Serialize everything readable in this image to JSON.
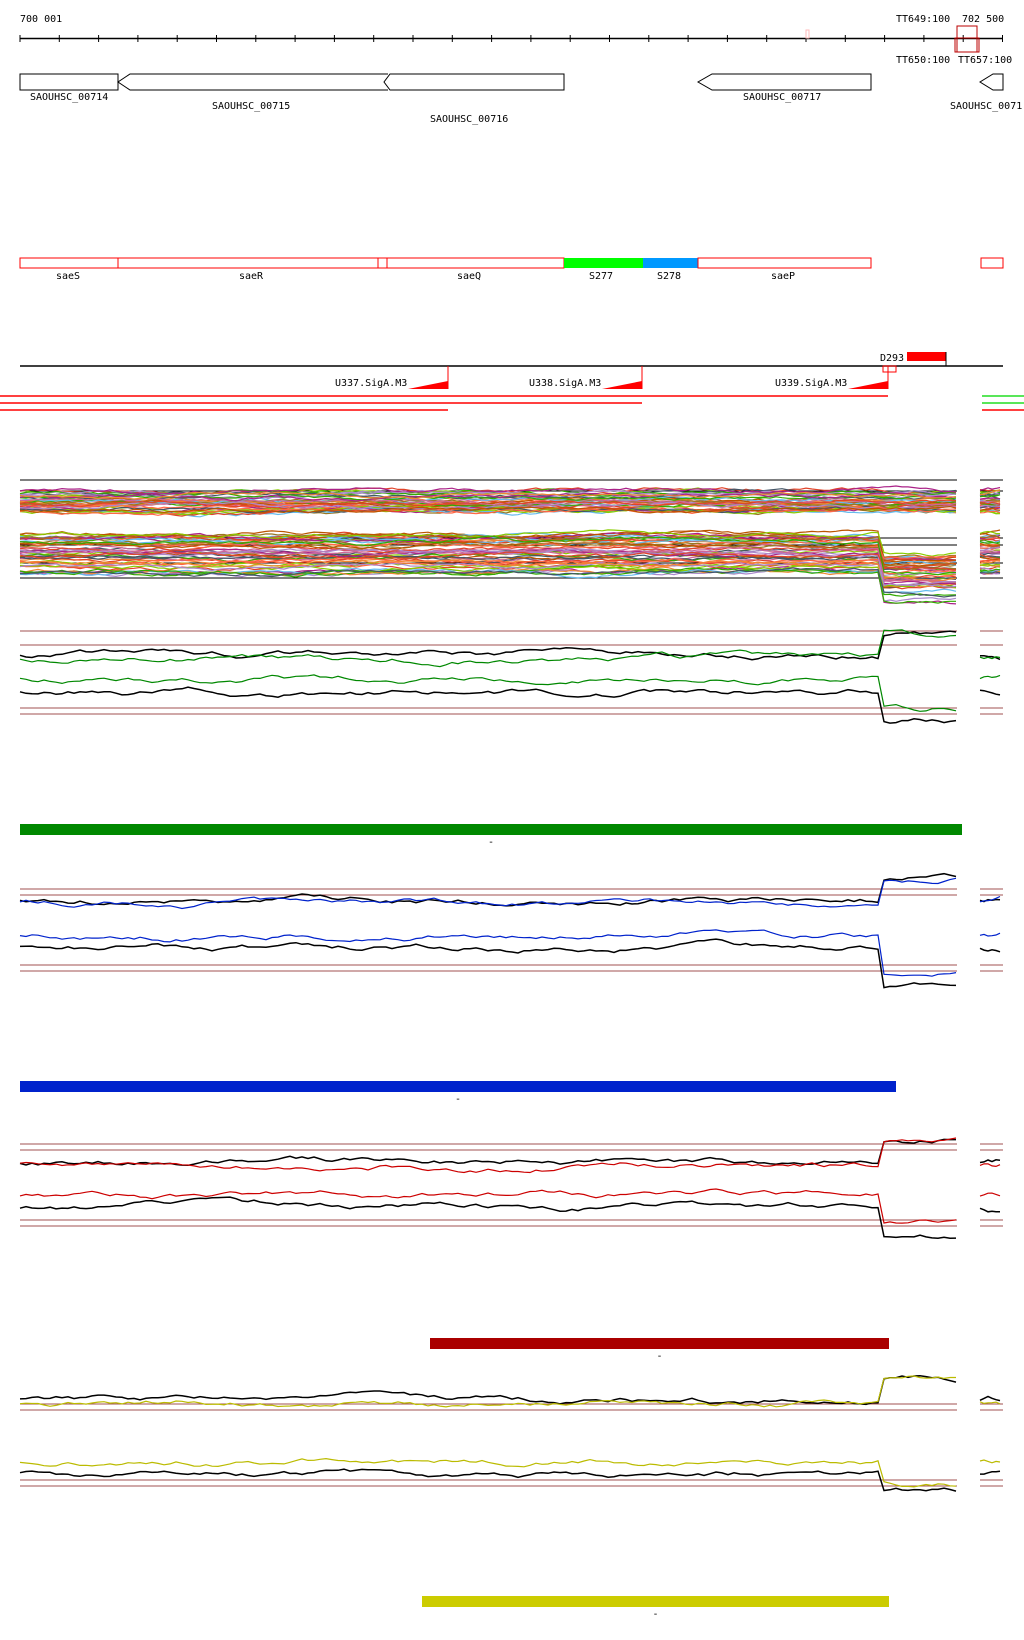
{
  "ruler": {
    "start_label": "700 001",
    "end_labels": [
      "TT649:100",
      "702 500"
    ],
    "bottom_labels": [
      "TT650:100",
      "TT657:100"
    ]
  },
  "genes": [
    {
      "label": "SAOUHSC_00714",
      "strand": "+"
    },
    {
      "label": "SAOUHSC_00715",
      "strand": "-"
    },
    {
      "label": "SAOUHSC_00716",
      "strand": "-"
    },
    {
      "label": "SAOUHSC_00717",
      "strand": "-"
    },
    {
      "label": "SAOUHSC_0071",
      "strand": "-"
    }
  ],
  "features": [
    {
      "label": "saeS",
      "color": "#ffffff"
    },
    {
      "label": "saeR",
      "color": "#ffffff"
    },
    {
      "label": "saeQ",
      "color": "#ffffff"
    },
    {
      "label": "S277",
      "color": "#00ff00"
    },
    {
      "label": "S278",
      "color": "#0099ff"
    },
    {
      "label": "saeP",
      "color": "#ffffff"
    }
  ],
  "terminator": {
    "label": "D293",
    "color": "#ff0000"
  },
  "promoters": [
    {
      "label": "U337.SigA.M3"
    },
    {
      "label": "U338.SigA.M3"
    },
    {
      "label": "U339.SigA.M3"
    }
  ],
  "tracks": [
    {
      "color": "multi",
      "bar_color": "#008800",
      "bar_label": "-"
    },
    {
      "color": "#008800"
    },
    {
      "color": "#0022cc",
      "bar_color": "#0022cc",
      "bar_label": "-"
    },
    {
      "color": "#cc0000",
      "bar_color": "#aa0000",
      "bar_label": "-"
    },
    {
      "color": "#cccc00",
      "bar_color": "#cccc00",
      "bar_label": "-"
    }
  ]
}
